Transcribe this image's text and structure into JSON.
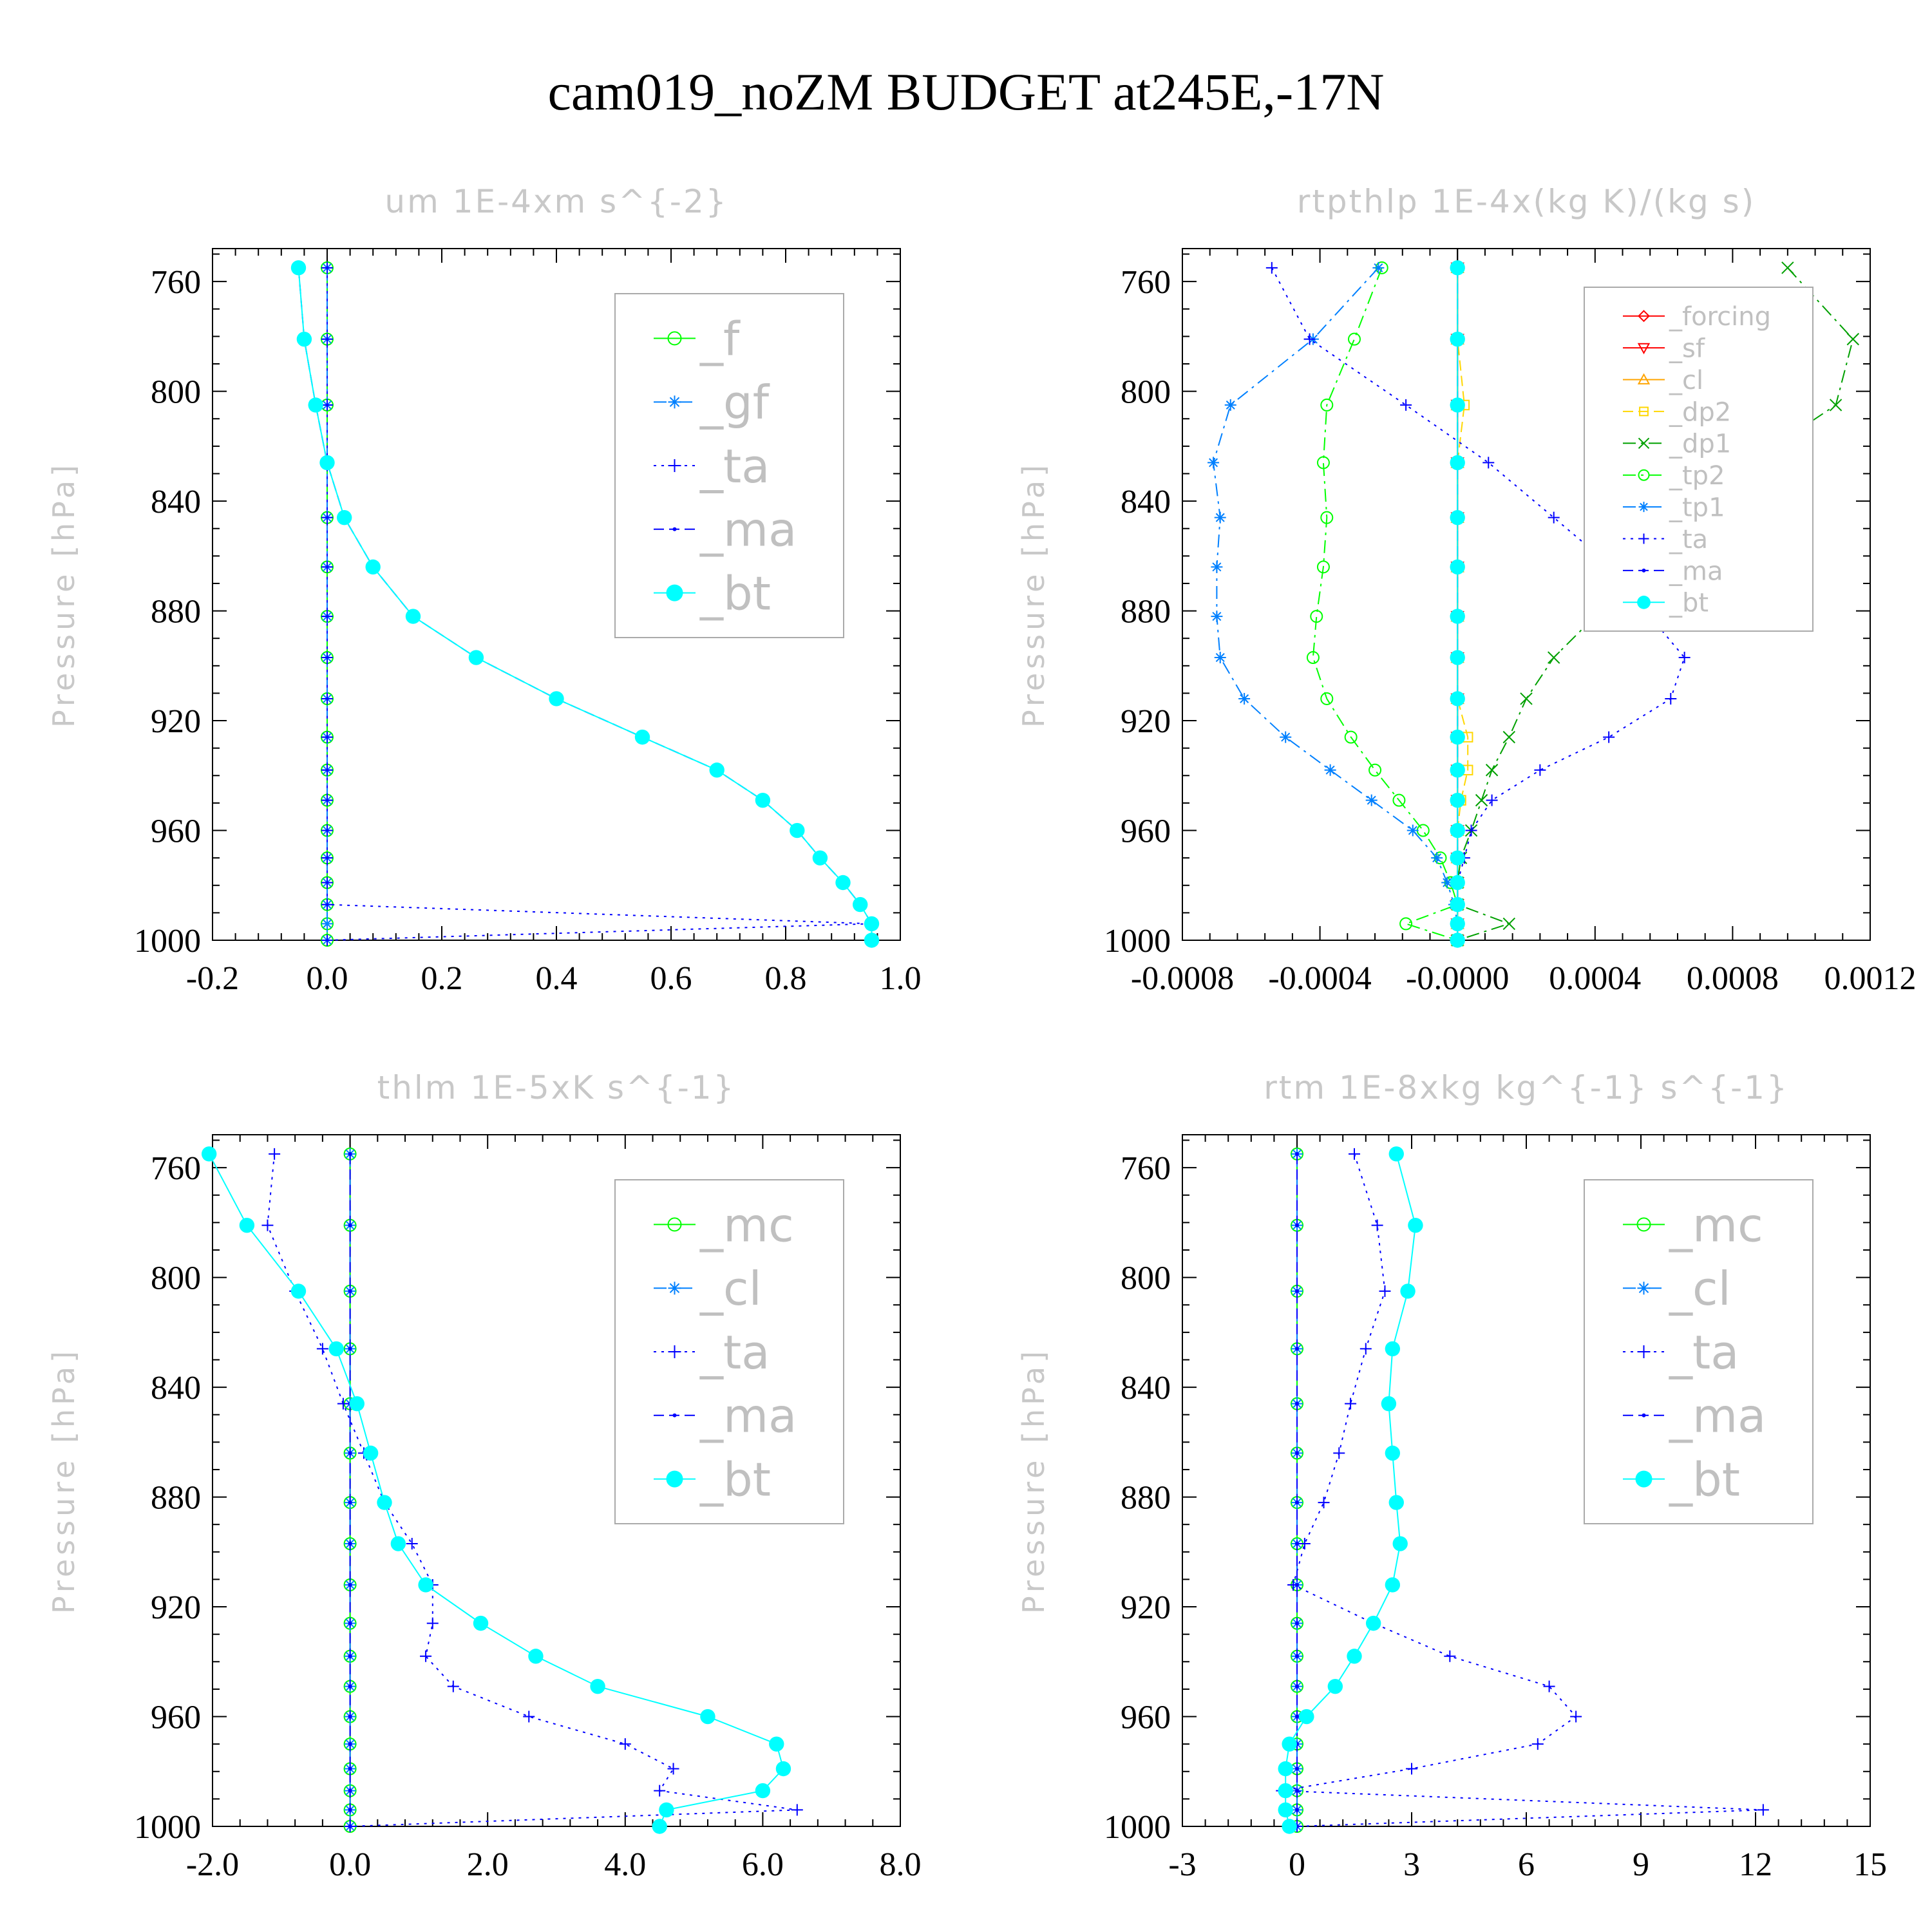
{
  "figure_title": "cam019_noZM  BUDGET at245E,-17N",
  "y_axis_label": "Pressure [hPa]",
  "chart_data": [
    {
      "type": "line",
      "title": "um  1E-4xm s^{-2}",
      "ylabel": "Pressure [hPa]",
      "xlabel": "",
      "xlim": [
        -0.2,
        1.0
      ],
      "ylim": [
        1000,
        748
      ],
      "y_inverted": true,
      "xticks": [
        "-0.2",
        "0.0",
        "0.2",
        "0.4",
        "0.6",
        "0.8",
        "1.0"
      ],
      "xtick_values": [
        -0.2,
        0.0,
        0.2,
        0.4,
        0.6,
        0.8,
        1.0
      ],
      "yticks": [
        760,
        800,
        840,
        880,
        920,
        960,
        1000
      ],
      "legend_position": "upper-right",
      "legend_font": 72,
      "legend": [
        "_f",
        "_gf",
        "_ta",
        "_ma",
        "_bt"
      ],
      "levels": [
        755,
        781,
        805,
        826,
        846,
        864,
        882,
        897,
        912,
        926,
        938,
        949,
        960,
        970,
        979,
        987,
        994,
        1000
      ],
      "series": [
        {
          "name": "_f",
          "color": "#00ff00",
          "style": "solid",
          "marker": "circle",
          "values": [
            0,
            0,
            0,
            0,
            0,
            0,
            0,
            0,
            0,
            0,
            0,
            0,
            0,
            0,
            0,
            0,
            0,
            0
          ]
        },
        {
          "name": "_gf",
          "color": "#0080ff",
          "style": "dashdot",
          "marker": "star",
          "values": [
            0,
            0,
            0,
            0,
            0,
            0,
            0,
            0,
            0,
            0,
            0,
            0,
            0,
            0,
            0,
            0,
            0,
            0
          ]
        },
        {
          "name": "_ta",
          "color": "#0000ff",
          "style": "dotted",
          "marker": "plus",
          "values": [
            0,
            0,
            0,
            0,
            0,
            0,
            0,
            0,
            0,
            0,
            0,
            0,
            0,
            0,
            0,
            0,
            0.95,
            0
          ]
        },
        {
          "name": "_ma",
          "color": "#0000ff",
          "style": "dashed",
          "marker": "dot",
          "values": [
            -0.05,
            -0.04,
            -0.02,
            0,
            0.03,
            0.08,
            0.15,
            0.26,
            0.4,
            0.55,
            0.68,
            0.76,
            0.82,
            0.86,
            0.9,
            0.93,
            0.95,
            0.95
          ]
        },
        {
          "name": "_bt",
          "color": "#00ffff",
          "style": "solid",
          "marker": "filled",
          "values": [
            -0.05,
            -0.04,
            -0.02,
            0,
            0.03,
            0.08,
            0.15,
            0.26,
            0.4,
            0.55,
            0.68,
            0.76,
            0.82,
            0.86,
            0.9,
            0.93,
            0.95,
            0.95
          ]
        }
      ]
    },
    {
      "type": "line",
      "title": "rtpthlp  1E-4x(kg K)/(kg s)",
      "ylabel": "Pressure [hPa]",
      "xlabel": "",
      "xlim": [
        -0.0008,
        0.0012
      ],
      "ylim": [
        1000,
        748
      ],
      "y_inverted": true,
      "xticks": [
        "-0.0008",
        "-0.0004",
        "-0.0000",
        "0.0004",
        "0.0008",
        "0.0012"
      ],
      "xtick_values": [
        -0.0008,
        -0.0004,
        0.0,
        0.0004,
        0.0008,
        0.0012
      ],
      "yticks": [
        760,
        800,
        840,
        880,
        920,
        960,
        1000
      ],
      "legend_position": "upper-right",
      "legend_font": 40,
      "legend": [
        "_forcing",
        "_sf",
        "_cl",
        "_dp2",
        "_dp1",
        "_tp2",
        "_tp1",
        "_ta",
        "_ma",
        "_bt"
      ],
      "levels": [
        755,
        781,
        805,
        826,
        846,
        864,
        882,
        897,
        912,
        926,
        938,
        949,
        960,
        970,
        979,
        987,
        994,
        1000
      ],
      "series": [
        {
          "name": "_forcing",
          "color": "#ff0000",
          "style": "solid",
          "marker": "diamond",
          "values": [
            0,
            0,
            0,
            0,
            0,
            0,
            0,
            0,
            0,
            0,
            0,
            0,
            0,
            0,
            0,
            0,
            0,
            0
          ]
        },
        {
          "name": "_sf",
          "color": "#ff0000",
          "style": "solid",
          "marker": "tri-down",
          "values": [
            0,
            0,
            0,
            0,
            0,
            0,
            0,
            0,
            0,
            0,
            0,
            0,
            0,
            0,
            0,
            0,
            0,
            0
          ]
        },
        {
          "name": "_cl",
          "color": "#ffa500",
          "style": "solid",
          "marker": "tri-up",
          "values": [
            0,
            0,
            0,
            0,
            0,
            0,
            0,
            0,
            0,
            0,
            0,
            0,
            0,
            0,
            0,
            0,
            0,
            0
          ]
        },
        {
          "name": "_dp2",
          "color": "#ffd700",
          "style": "dashed",
          "marker": "square",
          "values": [
            0,
            0,
            2e-05,
            0,
            0,
            0,
            0,
            0,
            0,
            3e-05,
            3e-05,
            1e-05,
            0,
            0,
            0,
            0,
            0,
            0
          ]
        },
        {
          "name": "_dp1",
          "color": "#00a000",
          "style": "dashdot",
          "marker": "x",
          "values": [
            0.00096,
            0.00115,
            0.0011,
            0.00085,
            0.00065,
            0.0005,
            0.0004,
            0.00028,
            0.0002,
            0.00015,
            0.0001,
            7e-05,
            4e-05,
            1e-05,
            0,
            0,
            0.00015,
            0
          ]
        },
        {
          "name": "_tp2",
          "color": "#00ff00",
          "style": "dashdot",
          "marker": "circle",
          "values": [
            -0.00022,
            -0.0003,
            -0.00038,
            -0.00039,
            -0.00038,
            -0.00039,
            -0.00041,
            -0.00042,
            -0.00038,
            -0.00031,
            -0.00024,
            -0.00017,
            -0.0001,
            -5e-05,
            -2e-05,
            0,
            -0.00015,
            0
          ]
        },
        {
          "name": "_tp1",
          "color": "#0080ff",
          "style": "dashdot",
          "marker": "star",
          "values": [
            -0.00023,
            -0.00042,
            -0.00066,
            -0.00071,
            -0.00069,
            -0.0007,
            -0.0007,
            -0.00069,
            -0.00062,
            -0.0005,
            -0.00037,
            -0.00025,
            -0.00013,
            -6e-05,
            -3e-05,
            -1e-05,
            0,
            0
          ]
        },
        {
          "name": "_ta",
          "color": "#0000ff",
          "style": "dotted",
          "marker": "plus",
          "values": [
            -0.00054,
            -0.00043,
            -0.00015,
            9e-05,
            0.00028,
            0.00045,
            0.00056,
            0.00066,
            0.00062,
            0.00044,
            0.00024,
            0.0001,
            4e-05,
            2e-05,
            0,
            0,
            0,
            0
          ]
        },
        {
          "name": "_ma",
          "color": "#0000ff",
          "style": "dashed",
          "marker": "dot",
          "values": [
            0,
            0,
            0,
            0,
            0,
            0,
            0,
            0,
            0,
            0,
            0,
            0,
            0,
            0,
            0,
            0,
            0,
            0
          ]
        },
        {
          "name": "_bt",
          "color": "#00ffff",
          "style": "solid",
          "marker": "filled",
          "values": [
            0,
            0,
            0,
            0,
            0,
            0,
            0,
            0,
            0,
            0,
            0,
            0,
            0,
            0,
            0,
            0,
            0,
            0
          ]
        }
      ]
    },
    {
      "type": "line",
      "title": "thlm  1E-5xK s^{-1}",
      "ylabel": "Pressure [hPa]",
      "xlabel": "",
      "xlim": [
        -2.0,
        8.0
      ],
      "ylim": [
        1000,
        748
      ],
      "y_inverted": true,
      "xticks": [
        "-2.0",
        "0.0",
        "2.0",
        "4.0",
        "6.0",
        "8.0"
      ],
      "xtick_values": [
        -2.0,
        0.0,
        2.0,
        4.0,
        6.0,
        8.0
      ],
      "yticks": [
        760,
        800,
        840,
        880,
        920,
        960,
        1000
      ],
      "legend_position": "upper-right",
      "legend_font": 72,
      "legend": [
        "_mc",
        "_cl",
        "_ta",
        "_ma",
        "_bt"
      ],
      "levels": [
        755,
        781,
        805,
        826,
        846,
        864,
        882,
        897,
        912,
        926,
        938,
        949,
        960,
        970,
        979,
        987,
        994,
        1000
      ],
      "series": [
        {
          "name": "_mc",
          "color": "#00ff00",
          "style": "solid",
          "marker": "circle",
          "values": [
            0,
            0,
            0,
            0,
            0,
            0,
            0,
            0,
            0,
            0,
            0,
            0,
            0,
            0,
            0,
            0,
            0,
            0
          ]
        },
        {
          "name": "_cl",
          "color": "#0080ff",
          "style": "dashdot",
          "marker": "star",
          "values": [
            0,
            0,
            0,
            0,
            0,
            0,
            0,
            0,
            0,
            0,
            0,
            0,
            0,
            0,
            0,
            0,
            0,
            0
          ]
        },
        {
          "name": "_ta",
          "color": "#0000ff",
          "style": "dotted",
          "marker": "plus",
          "values": [
            -1.1,
            -1.2,
            -0.8,
            -0.4,
            -0.1,
            0.2,
            0.5,
            0.9,
            1.2,
            1.2,
            1.1,
            1.5,
            2.6,
            4.0,
            4.7,
            4.5,
            6.5,
            0
          ]
        },
        {
          "name": "_ma",
          "color": "#0000ff",
          "style": "dashed",
          "marker": "dot",
          "values": [
            0,
            0,
            0,
            0,
            0,
            0,
            0,
            0,
            0,
            0,
            0,
            0,
            0,
            0,
            0,
            0,
            0,
            0
          ]
        },
        {
          "name": "_bt",
          "color": "#00ffff",
          "style": "solid",
          "marker": "filled",
          "values": [
            -2.05,
            -1.5,
            -0.75,
            -0.2,
            0.1,
            0.3,
            0.5,
            0.7,
            1.1,
            1.9,
            2.7,
            3.6,
            5.2,
            6.2,
            6.3,
            6.0,
            4.6,
            4.5
          ]
        }
      ]
    },
    {
      "type": "line",
      "title": "rtm  1E-8xkg kg^{-1} s^{-1}",
      "ylabel": "Pressure [hPa]",
      "xlabel": "",
      "xlim": [
        -3,
        15
      ],
      "ylim": [
        1000,
        748
      ],
      "y_inverted": true,
      "xticks": [
        "-3",
        "0",
        "3",
        "6",
        "9",
        "12",
        "15"
      ],
      "xtick_values": [
        -3,
        0,
        3,
        6,
        9,
        12,
        15
      ],
      "yticks": [
        760,
        800,
        840,
        880,
        920,
        960,
        1000
      ],
      "legend_position": "upper-right",
      "legend_font": 72,
      "legend": [
        "_mc",
        "_cl",
        "_ta",
        "_ma",
        "_bt"
      ],
      "levels": [
        755,
        781,
        805,
        826,
        846,
        864,
        882,
        897,
        912,
        926,
        938,
        949,
        960,
        970,
        979,
        987,
        994,
        1000
      ],
      "series": [
        {
          "name": "_mc",
          "color": "#00ff00",
          "style": "solid",
          "marker": "circle",
          "values": [
            0,
            0,
            0,
            0,
            0,
            0,
            0,
            0,
            0,
            0,
            0,
            0,
            0,
            0,
            0,
            0,
            0,
            0
          ]
        },
        {
          "name": "_cl",
          "color": "#0080ff",
          "style": "dashdot",
          "marker": "star",
          "values": [
            0,
            0,
            0,
            0,
            0,
            0,
            0,
            0,
            0,
            0,
            0,
            0,
            0,
            0,
            0,
            0,
            0,
            0
          ]
        },
        {
          "name": "_ta",
          "color": "#0000ff",
          "style": "dotted",
          "marker": "plus",
          "values": [
            1.5,
            2.1,
            2.3,
            1.8,
            1.4,
            1.1,
            0.7,
            0.2,
            -0.1,
            2.0,
            4.0,
            6.6,
            7.3,
            6.3,
            3.0,
            -0.4,
            12.2,
            0
          ]
        },
        {
          "name": "_ma",
          "color": "#0000ff",
          "style": "dashed",
          "marker": "dot",
          "values": [
            0,
            0,
            0,
            0,
            0,
            0,
            0,
            0,
            0,
            0,
            0,
            0,
            0,
            0,
            0,
            0,
            0,
            0
          ]
        },
        {
          "name": "_bt",
          "color": "#00ffff",
          "style": "solid",
          "marker": "filled",
          "values": [
            2.6,
            3.1,
            2.9,
            2.5,
            2.4,
            2.5,
            2.6,
            2.7,
            2.5,
            2.0,
            1.5,
            1.0,
            0.25,
            -0.2,
            -0.3,
            -0.3,
            -0.3,
            -0.2
          ]
        }
      ]
    }
  ]
}
